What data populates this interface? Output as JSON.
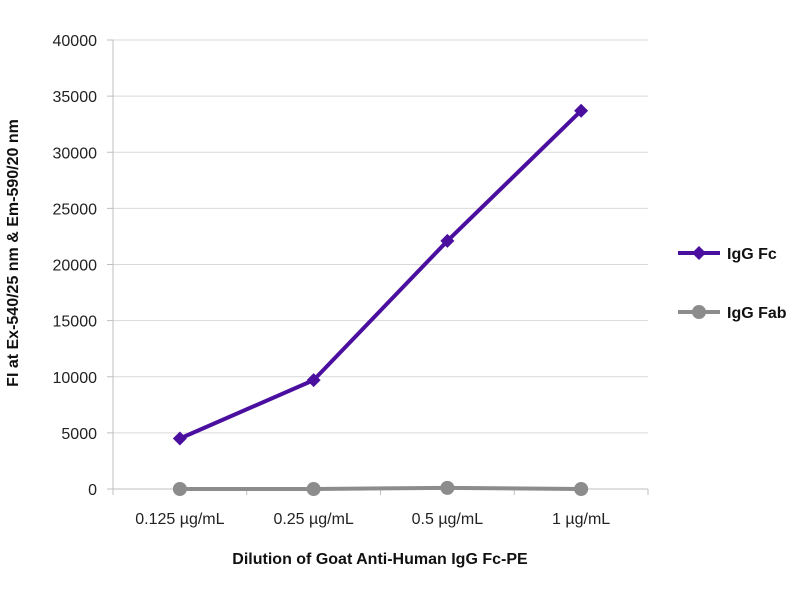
{
  "chart_data": {
    "type": "line",
    "title": "",
    "xlabel": "Dilution of Goat Anti-Human IgG Fc-PE",
    "ylabel": "FI at Ex-540/25 nm & Em-590/20 nm",
    "categories": [
      "0.125 µg/mL",
      "0.25 µg/mL",
      "0.5 µg/mL",
      "1 µg/mL"
    ],
    "ylim": [
      0,
      40000
    ],
    "yticks": [
      "0",
      "5000",
      "10000",
      "15000",
      "20000",
      "25000",
      "30000",
      "35000",
      "40000"
    ],
    "grid": true,
    "legend_position": "right",
    "series": [
      {
        "name": "IgG Fc",
        "values": [
          4500,
          9700,
          22100,
          33700
        ],
        "color": "#4b0fa0",
        "marker": "diamond"
      },
      {
        "name": "IgG Fab",
        "values": [
          0,
          0,
          100,
          0
        ],
        "color": "#8c8c8c",
        "marker": "circle"
      }
    ]
  }
}
